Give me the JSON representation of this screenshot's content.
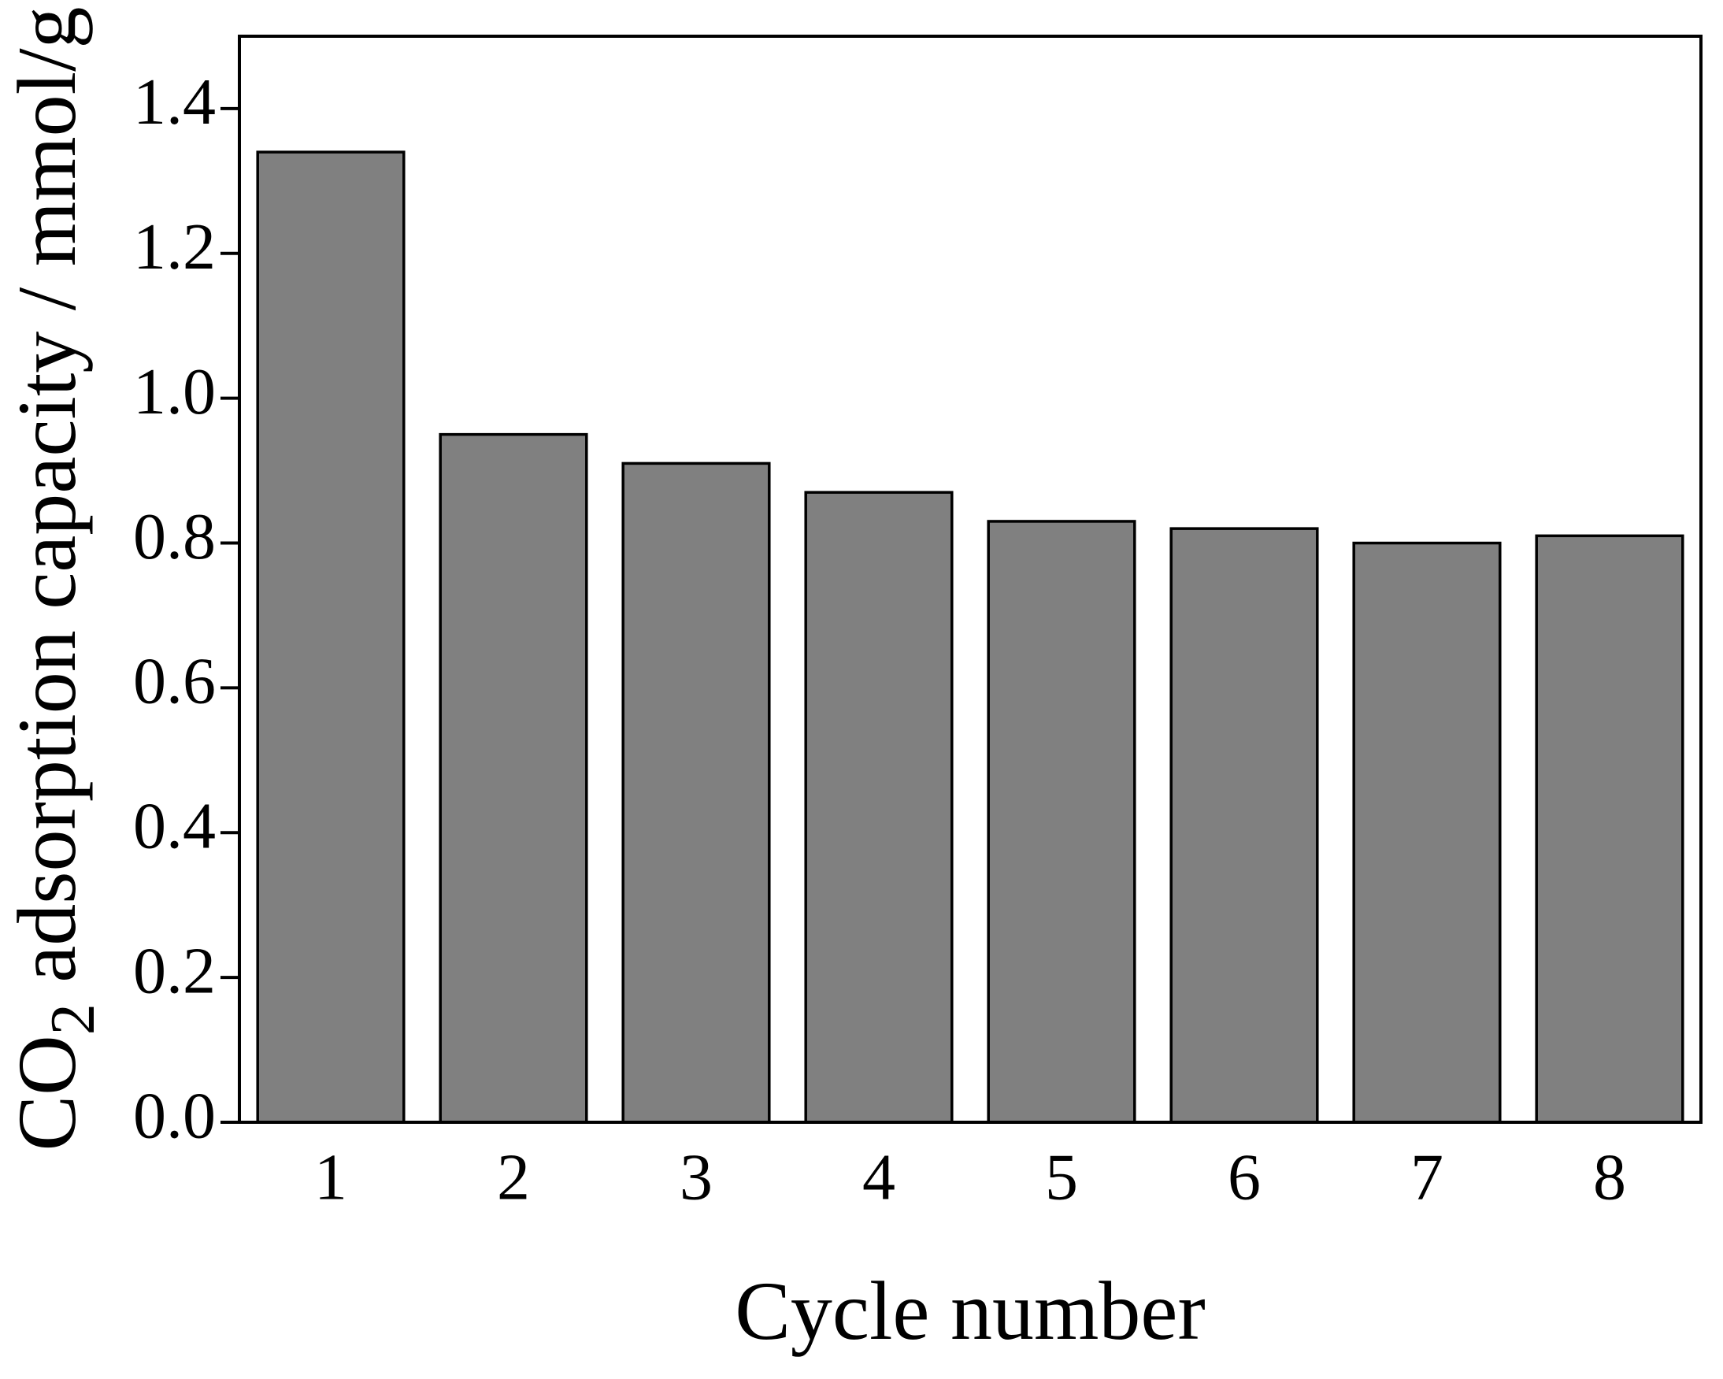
{
  "chart_data": {
    "type": "bar",
    "x_label": "Cycle number",
    "y_label": {
      "prefix": "CO",
      "sub": "2",
      "rest": " adsorption capacity / mmol/g"
    },
    "categories": [
      "1",
      "2",
      "3",
      "4",
      "5",
      "6",
      "7",
      "8"
    ],
    "values": [
      1.34,
      0.95,
      0.91,
      0.87,
      0.83,
      0.82,
      0.8,
      0.81
    ],
    "color": "#808080",
    "ylim": [
      0,
      1.5
    ],
    "yticks": [
      {
        "value": 0,
        "label": "0.0"
      },
      0.2,
      0.4,
      0.6,
      0.8,
      {
        "value": 1,
        "label": "1.0"
      },
      1.2,
      1.4
    ],
    "grid": false
  }
}
